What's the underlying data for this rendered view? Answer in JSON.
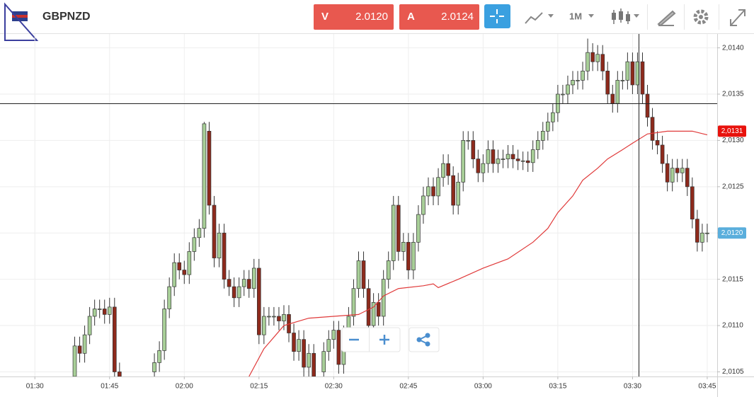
{
  "header": {
    "symbol": "GBPNZD",
    "sell": {
      "label": "V",
      "price": "2.0120"
    },
    "buy": {
      "label": "A",
      "price": "2.0124"
    },
    "timeframe": "1M"
  },
  "chart_data": {
    "type": "candlestick",
    "up_color": "#a8cf98",
    "down_color": "#8e2a1c",
    "ma_color": "#e03a3a",
    "xlim": [
      "01:23",
      "03:47"
    ],
    "xticks": [
      "01:30",
      "01:45",
      "02:00",
      "02:15",
      "02:30",
      "02:45",
      "03:00",
      "03:15",
      "03:30",
      "03:45"
    ],
    "ylim": [
      2.01045,
      2.01415
    ],
    "yticks": [
      {
        "value": 2.0105,
        "label": "2,0105"
      },
      {
        "value": 2.011,
        "label": "2,0110"
      },
      {
        "value": 2.0115,
        "label": "2,0115"
      },
      {
        "value": 2.012,
        "label": "2,0120"
      },
      {
        "value": 2.0125,
        "label": "2,0125"
      },
      {
        "value": 2.013,
        "label": "2,0130"
      },
      {
        "value": 2.0135,
        "label": "2,0135"
      },
      {
        "value": 2.014,
        "label": "2,0140"
      }
    ],
    "grid": true,
    "x": [
      "01:38",
      "01:39",
      "01:40",
      "01:41",
      "01:42",
      "01:43",
      "01:44",
      "01:45",
      "01:46",
      "01:47",
      "01:54",
      "01:55",
      "01:56",
      "01:57",
      "01:58",
      "01:59",
      "02:00",
      "02:01",
      "02:02",
      "02:03",
      "02:04",
      "02:05",
      "02:06",
      "02:07",
      "02:08",
      "02:09",
      "02:10",
      "02:11",
      "02:12",
      "02:13",
      "02:14",
      "02:15",
      "02:16",
      "02:17",
      "02:18",
      "02:19",
      "02:20",
      "02:21",
      "02:22",
      "02:23",
      "02:24",
      "02:25",
      "02:26",
      "02:28",
      "02:29",
      "02:30",
      "02:31",
      "02:32",
      "02:33",
      "02:34",
      "02:35",
      "02:36",
      "02:37",
      "02:38",
      "02:39",
      "02:40",
      "02:41",
      "02:42",
      "02:43",
      "02:44",
      "02:45",
      "02:46",
      "02:47",
      "02:48",
      "02:49",
      "02:50",
      "02:51",
      "02:52",
      "02:53",
      "02:54",
      "02:55",
      "02:56",
      "02:57",
      "02:58",
      "02:59",
      "03:00",
      "03:01",
      "03:02",
      "03:03",
      "03:04",
      "03:05",
      "03:06",
      "03:07",
      "03:08",
      "03:09",
      "03:10",
      "03:11",
      "03:12",
      "03:13",
      "03:14",
      "03:15",
      "03:16",
      "03:17",
      "03:18",
      "03:19",
      "03:20",
      "03:21",
      "03:22",
      "03:23",
      "03:24",
      "03:25",
      "03:26",
      "03:27",
      "03:28",
      "03:29",
      "03:30",
      "03:31",
      "03:32",
      "03:33",
      "03:34",
      "03:35",
      "03:36",
      "03:37",
      "03:38",
      "03:39",
      "03:40",
      "03:41",
      "03:42",
      "03:43",
      "03:44",
      "03:45"
    ],
    "open": [
      2.01045,
      2.01078,
      2.0107,
      2.0109,
      2.0111,
      2.01118,
      2.01118,
      2.01112,
      2.0112,
      2.0105,
      2.0105,
      2.0106,
      2.01073,
      2.01118,
      2.01142,
      2.01168,
      2.0116,
      2.01155,
      2.0118,
      2.01195,
      2.01205,
      2.0131,
      2.0123,
      2.01173,
      2.012,
      2.0115,
      2.01142,
      2.0113,
      2.01142,
      2.0115,
      2.0114,
      2.01162,
      2.0109,
      2.0111,
      2.0111,
      2.0111,
      2.01105,
      2.01112,
      2.01092,
      2.01072,
      2.01085,
      2.01055,
      2.0107,
      2.0105,
      2.01072,
      2.01085,
      2.01095,
      2.01058,
      2.0109,
      2.0111,
      2.0114,
      2.0117,
      2.0114,
      2.011,
      2.01125,
      2.0111,
      2.0115,
      2.0117,
      2.0123,
      2.0118,
      2.0119,
      2.0116,
      2.0119,
      2.0122,
      2.0124,
      2.0125,
      2.0124,
      2.0126,
      2.01275,
      2.01262,
      2.0123,
      2.01255,
      2.013,
      2.013,
      2.0128,
      2.01265,
      2.01275,
      2.0129,
      2.01275,
      2.0128,
      2.0128,
      2.01285,
      2.0128,
      2.01278,
      2.01278,
      2.01276,
      2.0129,
      2.013,
      2.0131,
      2.0132,
      2.0133,
      2.0135,
      2.0135,
      2.0136,
      2.01365,
      2.01365,
      2.01375,
      2.01395,
      2.01385,
      2.01393,
      2.01375,
      2.0135,
      2.0134,
      2.01365,
      2.01365,
      2.01385,
      2.0136,
      2.01385,
      2.0135,
      2.01325,
      2.013,
      2.01295,
      2.01275,
      2.01255,
      2.0127,
      2.01265,
      2.0127,
      2.0125,
      2.01215,
      2.0119,
      2.012
    ],
    "high": [
      2.01088,
      2.01088,
      2.011,
      2.0112,
      2.01128,
      2.01128,
      2.01128,
      2.0113,
      2.0113,
      2.0106,
      2.0107,
      2.01083,
      2.01128,
      2.01152,
      2.01178,
      2.01178,
      2.0117,
      2.0119,
      2.01205,
      2.01215,
      2.0132,
      2.0132,
      2.0124,
      2.0121,
      2.0121,
      2.0116,
      2.01152,
      2.01152,
      2.0116,
      2.0116,
      2.01172,
      2.01172,
      2.0112,
      2.0112,
      2.0112,
      2.0112,
      2.01122,
      2.01122,
      2.01102,
      2.01095,
      2.01095,
      2.0108,
      2.0108,
      2.01082,
      2.01095,
      2.01105,
      2.01105,
      2.011,
      2.0112,
      2.0115,
      2.0118,
      2.0118,
      2.0115,
      2.01135,
      2.01135,
      2.0116,
      2.0118,
      2.0124,
      2.0124,
      2.012,
      2.012,
      2.012,
      2.0123,
      2.0125,
      2.0126,
      2.0126,
      2.0127,
      2.01285,
      2.01285,
      2.01272,
      2.01265,
      2.0131,
      2.0131,
      2.0131,
      2.0129,
      2.01285,
      2.013,
      2.013,
      2.0129,
      2.0129,
      2.01295,
      2.01295,
      2.0129,
      2.01288,
      2.01288,
      2.013,
      2.0131,
      2.0132,
      2.0133,
      2.0134,
      2.0136,
      2.0136,
      2.0137,
      2.01375,
      2.01375,
      2.01385,
      2.0141,
      2.01405,
      2.01403,
      2.01403,
      2.01385,
      2.0136,
      2.01375,
      2.01375,
      2.01395,
      2.01395,
      2.01395,
      2.01395,
      2.0136,
      2.01335,
      2.0131,
      2.01305,
      2.01285,
      2.0128,
      2.0128,
      2.0128,
      2.0128,
      2.0126,
      2.01225,
      2.0121,
      2.0121
    ],
    "low": [
      2.01035,
      2.0106,
      2.0106,
      2.0108,
      2.011,
      2.01108,
      2.01102,
      2.01102,
      2.0104,
      2.01035,
      2.0104,
      2.0105,
      2.01063,
      2.01108,
      2.01132,
      2.0115,
      2.01145,
      2.01145,
      2.0117,
      2.01185,
      2.01195,
      2.0122,
      2.01163,
      2.01163,
      2.0114,
      2.01132,
      2.0112,
      2.0112,
      2.01132,
      2.0113,
      2.0113,
      2.0108,
      2.0108,
      2.011,
      2.011,
      2.01095,
      2.01095,
      2.01082,
      2.01062,
      2.01062,
      2.01045,
      2.01045,
      2.01035,
      2.0104,
      2.01062,
      2.01075,
      2.01048,
      2.01048,
      2.0108,
      2.011,
      2.0113,
      2.0113,
      2.0109,
      2.0109,
      2.011,
      2.011,
      2.0114,
      2.0116,
      2.0117,
      2.0117,
      2.0115,
      2.0115,
      2.0118,
      2.0121,
      2.0123,
      2.0123,
      2.0123,
      2.0125,
      2.01252,
      2.0122,
      2.0122,
      2.01245,
      2.0129,
      2.0127,
      2.01255,
      2.01255,
      2.01265,
      2.01265,
      2.01265,
      2.0127,
      2.0127,
      2.0127,
      2.01268,
      2.01268,
      2.01266,
      2.01266,
      2.0128,
      2.0129,
      2.013,
      2.0131,
      2.0132,
      2.0134,
      2.0134,
      2.0135,
      2.01355,
      2.01355,
      2.01365,
      2.01375,
      2.01375,
      2.01365,
      2.0134,
      2.0133,
      2.0133,
      2.01355,
      2.01355,
      2.0135,
      2.0135,
      2.0134,
      2.01315,
      2.0129,
      2.01285,
      2.01265,
      2.01245,
      2.01245,
      2.01255,
      2.01255,
      2.0124,
      2.01205,
      2.0118,
      2.0118,
      2.0119
    ],
    "close": [
      2.01078,
      2.0107,
      2.0109,
      2.0111,
      2.01118,
      2.01118,
      2.01112,
      2.0112,
      2.0105,
      2.01045,
      2.0106,
      2.01073,
      2.01118,
      2.01142,
      2.01168,
      2.0116,
      2.01155,
      2.0118,
      2.01195,
      2.01205,
      2.01318,
      2.0123,
      2.01173,
      2.012,
      2.0115,
      2.01142,
      2.0113,
      2.01142,
      2.0115,
      2.0114,
      2.01162,
      2.0109,
      2.0111,
      2.0111,
      2.0111,
      2.01105,
      2.01112,
      2.01092,
      2.01072,
      2.01085,
      2.01055,
      2.0107,
      2.01045,
      2.01072,
      2.01085,
      2.01095,
      2.01058,
      2.0109,
      2.0111,
      2.0114,
      2.0117,
      2.0114,
      2.011,
      2.01125,
      2.0111,
      2.0115,
      2.0117,
      2.0123,
      2.0118,
      2.0119,
      2.0116,
      2.0119,
      2.0122,
      2.0124,
      2.0125,
      2.0124,
      2.0126,
      2.01275,
      2.01262,
      2.0123,
      2.01255,
      2.013,
      2.013,
      2.0128,
      2.01265,
      2.01275,
      2.0129,
      2.01275,
      2.0128,
      2.0128,
      2.01285,
      2.0128,
      2.01278,
      2.01278,
      2.01276,
      2.0129,
      2.013,
      2.0131,
      2.0132,
      2.0133,
      2.0135,
      2.0135,
      2.0136,
      2.01365,
      2.01365,
      2.01375,
      2.01395,
      2.01385,
      2.01393,
      2.01375,
      2.0135,
      2.0134,
      2.01365,
      2.01365,
      2.01385,
      2.0136,
      2.01385,
      2.0135,
      2.01325,
      2.013,
      2.01295,
      2.01275,
      2.01255,
      2.0127,
      2.01265,
      2.0127,
      2.0125,
      2.01215,
      2.0119,
      2.012,
      2.012
    ],
    "ma": {
      "x": [
        "02:13",
        "02:16",
        "02:20",
        "02:25",
        "02:30",
        "02:35",
        "02:38",
        "02:40",
        "02:43",
        "02:48",
        "02:50",
        "02:51",
        "02:55",
        "03:00",
        "03:05",
        "03:10",
        "03:13",
        "03:15",
        "03:18",
        "03:20",
        "03:23",
        "03:25",
        "03:28",
        "03:30",
        "03:33",
        "03:37",
        "03:42",
        "03:45"
      ],
      "values": [
        2.01045,
        2.01075,
        2.011,
        2.01108,
        2.0111,
        2.01112,
        2.0112,
        2.01132,
        2.0114,
        2.01143,
        2.01145,
        2.01141,
        2.0115,
        2.01162,
        2.01172,
        2.0119,
        2.01205,
        2.01222,
        2.0124,
        2.01257,
        2.0127,
        2.0128,
        2.0129,
        2.01297,
        2.01307,
        2.0131,
        2.0131,
        2.01306
      ]
    },
    "price_tags": [
      {
        "value": 2.0131,
        "label": "2,0131",
        "color": "#e8120c"
      },
      {
        "value": 2.012,
        "label": "2,0120",
        "color": "#5aaedc"
      }
    ]
  }
}
